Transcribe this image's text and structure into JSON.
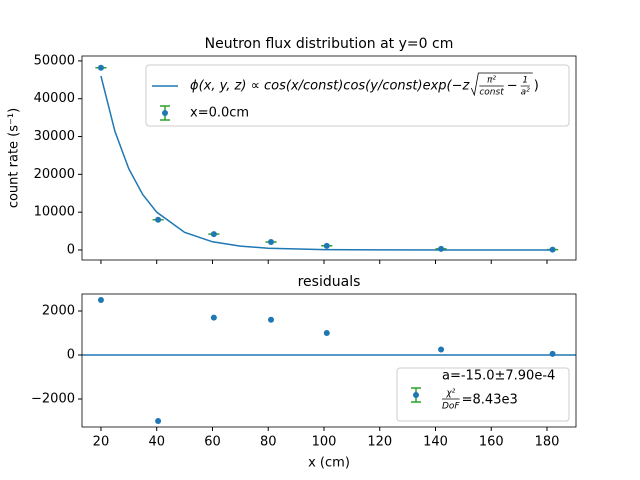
{
  "chart_data": [
    {
      "type": "errorbar",
      "title": "Neutron flux distribution at y=0 cm",
      "y_label": "count rate (s⁻¹)",
      "xlim": [
        13.2,
        190.4
      ],
      "ylim": [
        -2650,
        51300
      ],
      "xticks": [
        20,
        40,
        60,
        80,
        100,
        120,
        140,
        160,
        180
      ],
      "xtick_labels": false,
      "yticks": [
        0,
        10000,
        20000,
        30000,
        40000,
        50000
      ],
      "series": [
        {
          "kind": "points",
          "name": "x=0.0cm",
          "color": "#1f77b4",
          "ecolor": "#2ca02c",
          "x": [
            20,
            40.5,
            60.5,
            81,
            101,
            142,
            182
          ],
          "values": [
            48200,
            8000,
            4200,
            2100,
            1100,
            300,
            100
          ],
          "xerr": [
            2,
            2,
            2,
            2,
            2,
            2,
            2
          ]
        },
        {
          "kind": "line",
          "color": "#1f77b4",
          "x": [
            20,
            25,
            30,
            35,
            40,
            50,
            60,
            70,
            80,
            100,
            120,
            150,
            183
          ],
          "values": [
            46000,
            31400,
            21450,
            14640,
            10000,
            4660,
            2170,
            1010,
            470,
            100,
            22,
            2,
            0
          ],
          "legend_label": {
            "prefix": "ϕ(x, y, z) ∝ cos(x/const)cos(y/const)exp(−z",
            "num1": "π²",
            "den1": "const",
            "minus": "−",
            "num2": "1",
            "den2": "a²",
            "suffix": ")"
          }
        }
      ]
    },
    {
      "type": "scatter",
      "title": "residuals",
      "x_label": "x (cm)",
      "xlim": [
        13.2,
        190.4
      ],
      "ylim": [
        -3273,
        2773
      ],
      "xticks": [
        20,
        40,
        60,
        80,
        100,
        120,
        140,
        160,
        180
      ],
      "xtick_labels": true,
      "yticks": [
        {
          "value": -2000,
          "label": "−2000"
        },
        0,
        2000
      ],
      "hline": 0,
      "series": [
        {
          "kind": "points",
          "color": "#1f77b4",
          "x": [
            20,
            40.5,
            60.5,
            81,
            101,
            142,
            182
          ],
          "values": [
            2500,
            -3000,
            1700,
            1600,
            1000,
            250,
            50
          ]
        }
      ],
      "legend": {
        "line1": "a=-15.0±7.90e-4",
        "num": "χ²",
        "den": "DoF",
        "rest": "=8.43e3",
        "color": "#1f77b4",
        "ecolor": "#2ca02c"
      }
    }
  ]
}
